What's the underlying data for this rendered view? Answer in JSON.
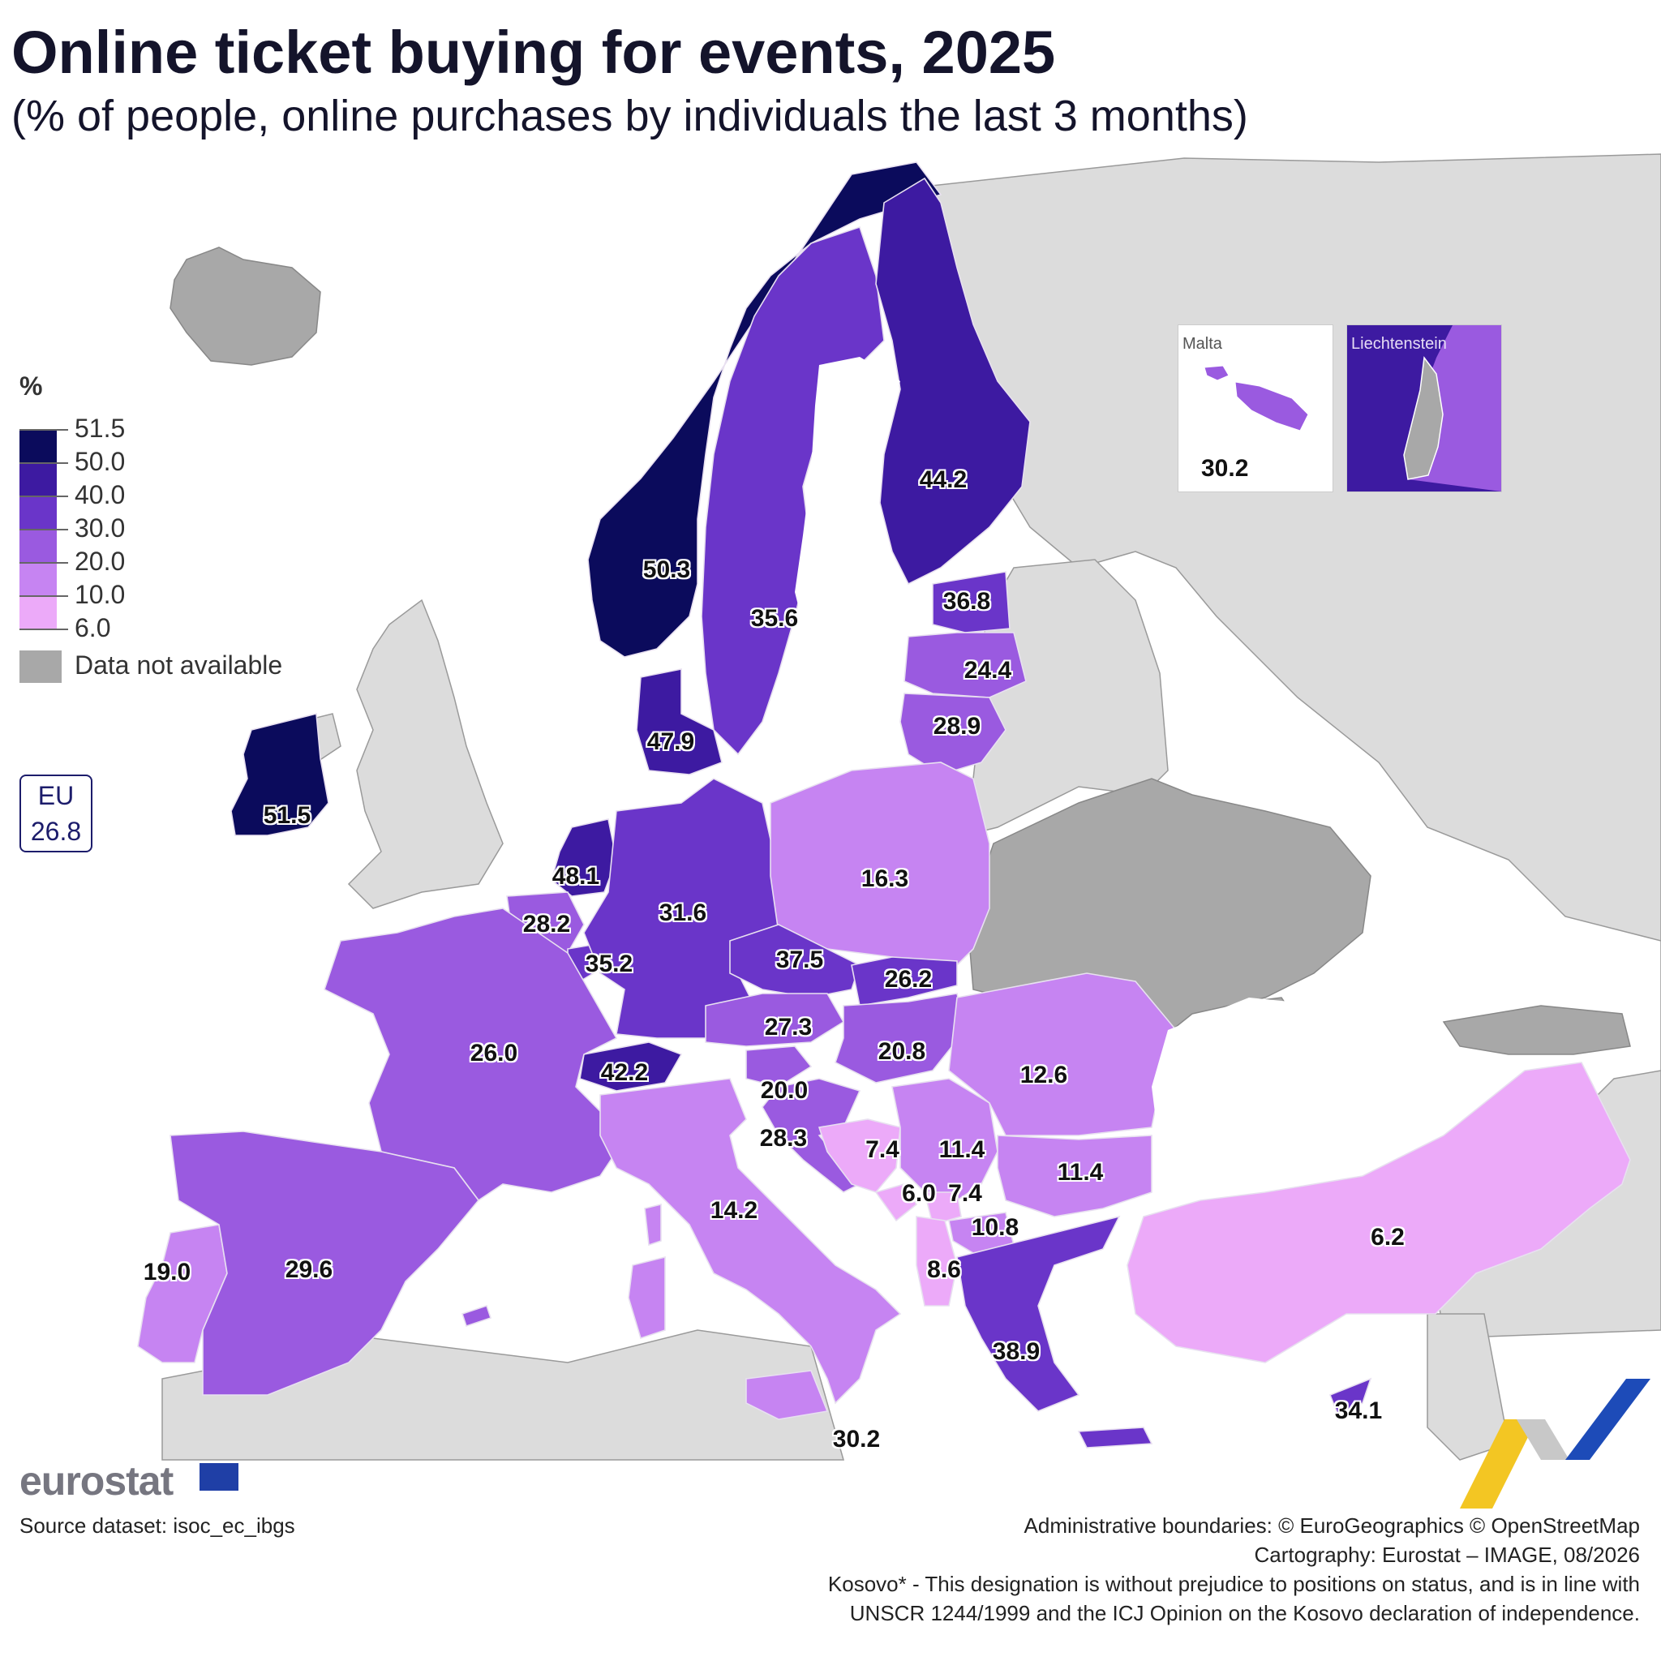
{
  "header": {
    "title": "Online ticket buying for events, 2025",
    "subtitle": "(% of people, online purchases by individuals the last 3 months)"
  },
  "legend": {
    "unit": "%",
    "breaks": [
      "51.5",
      "50.0",
      "40.0",
      "30.0",
      "20.0",
      "10.0",
      "6.0"
    ],
    "classes": [
      {
        "range": "50.0–51.5",
        "color": "#0b0b5c"
      },
      {
        "range": "40.0–50.0",
        "color": "#3d1aa1"
      },
      {
        "range": "30.0–40.0",
        "color": "#6a35c9"
      },
      {
        "range": "20.0–30.0",
        "color": "#9a5ae0"
      },
      {
        "range": "10.0–20.0",
        "color": "#c684f2"
      },
      {
        "range": "6.0–10.0",
        "color": "#ecaaf9"
      }
    ],
    "na_label": "Data not available",
    "na_color": "#a8a8a8",
    "non_eu_color": "#dcdcdc"
  },
  "eu_box": {
    "label": "EU",
    "value": "26.8"
  },
  "map_values": {
    "norway": "50.3",
    "finland": "44.2",
    "sweden": "35.6",
    "estonia": "36.8",
    "latvia": "24.4",
    "lithuania": "28.9",
    "denmark": "47.9",
    "ireland": "51.5",
    "netherlands": "48.1",
    "belgium": "28.2",
    "luxembourg": "35.2",
    "germany": "31.6",
    "poland": "16.3",
    "czechia": "37.5",
    "slovakia": "26.2",
    "austria": "27.3",
    "hungary": "20.8",
    "switzerland": "42.2",
    "france": "26.0",
    "slovenia": "20.0",
    "croatia": "28.3",
    "bosnia": "7.4",
    "serbia": "11.4",
    "romania": "12.6",
    "bulgaria": "11.4",
    "montenegro": "6.0",
    "kosovo": "7.4",
    "north_macedonia": "10.8",
    "albania": "8.6",
    "greece": "38.9",
    "turkey": "6.2",
    "italy": "14.2",
    "portugal": "19.0",
    "spain": "29.6",
    "cyprus": "34.1",
    "malta_main": "30.2"
  },
  "insets": {
    "malta": {
      "name": "Malta",
      "value": "30.2"
    },
    "liechtenstein": {
      "name": "Liechtenstein"
    }
  },
  "footer": {
    "logo": "eurostat",
    "source": "Source dataset: isoc_ec_ibgs",
    "boundaries": "Administrative boundaries: © EuroGeographics © OpenStreetMap",
    "cartography": "Cartography: Eurostat – IMAGE, 08/2026",
    "kosovo_note_1": "Kosovo* - This designation is without prejudice to positions on status, and is in line with",
    "kosovo_note_2": "UNSCR 1244/1999 and the ICJ Opinion on the Kosovo declaration of independence."
  }
}
